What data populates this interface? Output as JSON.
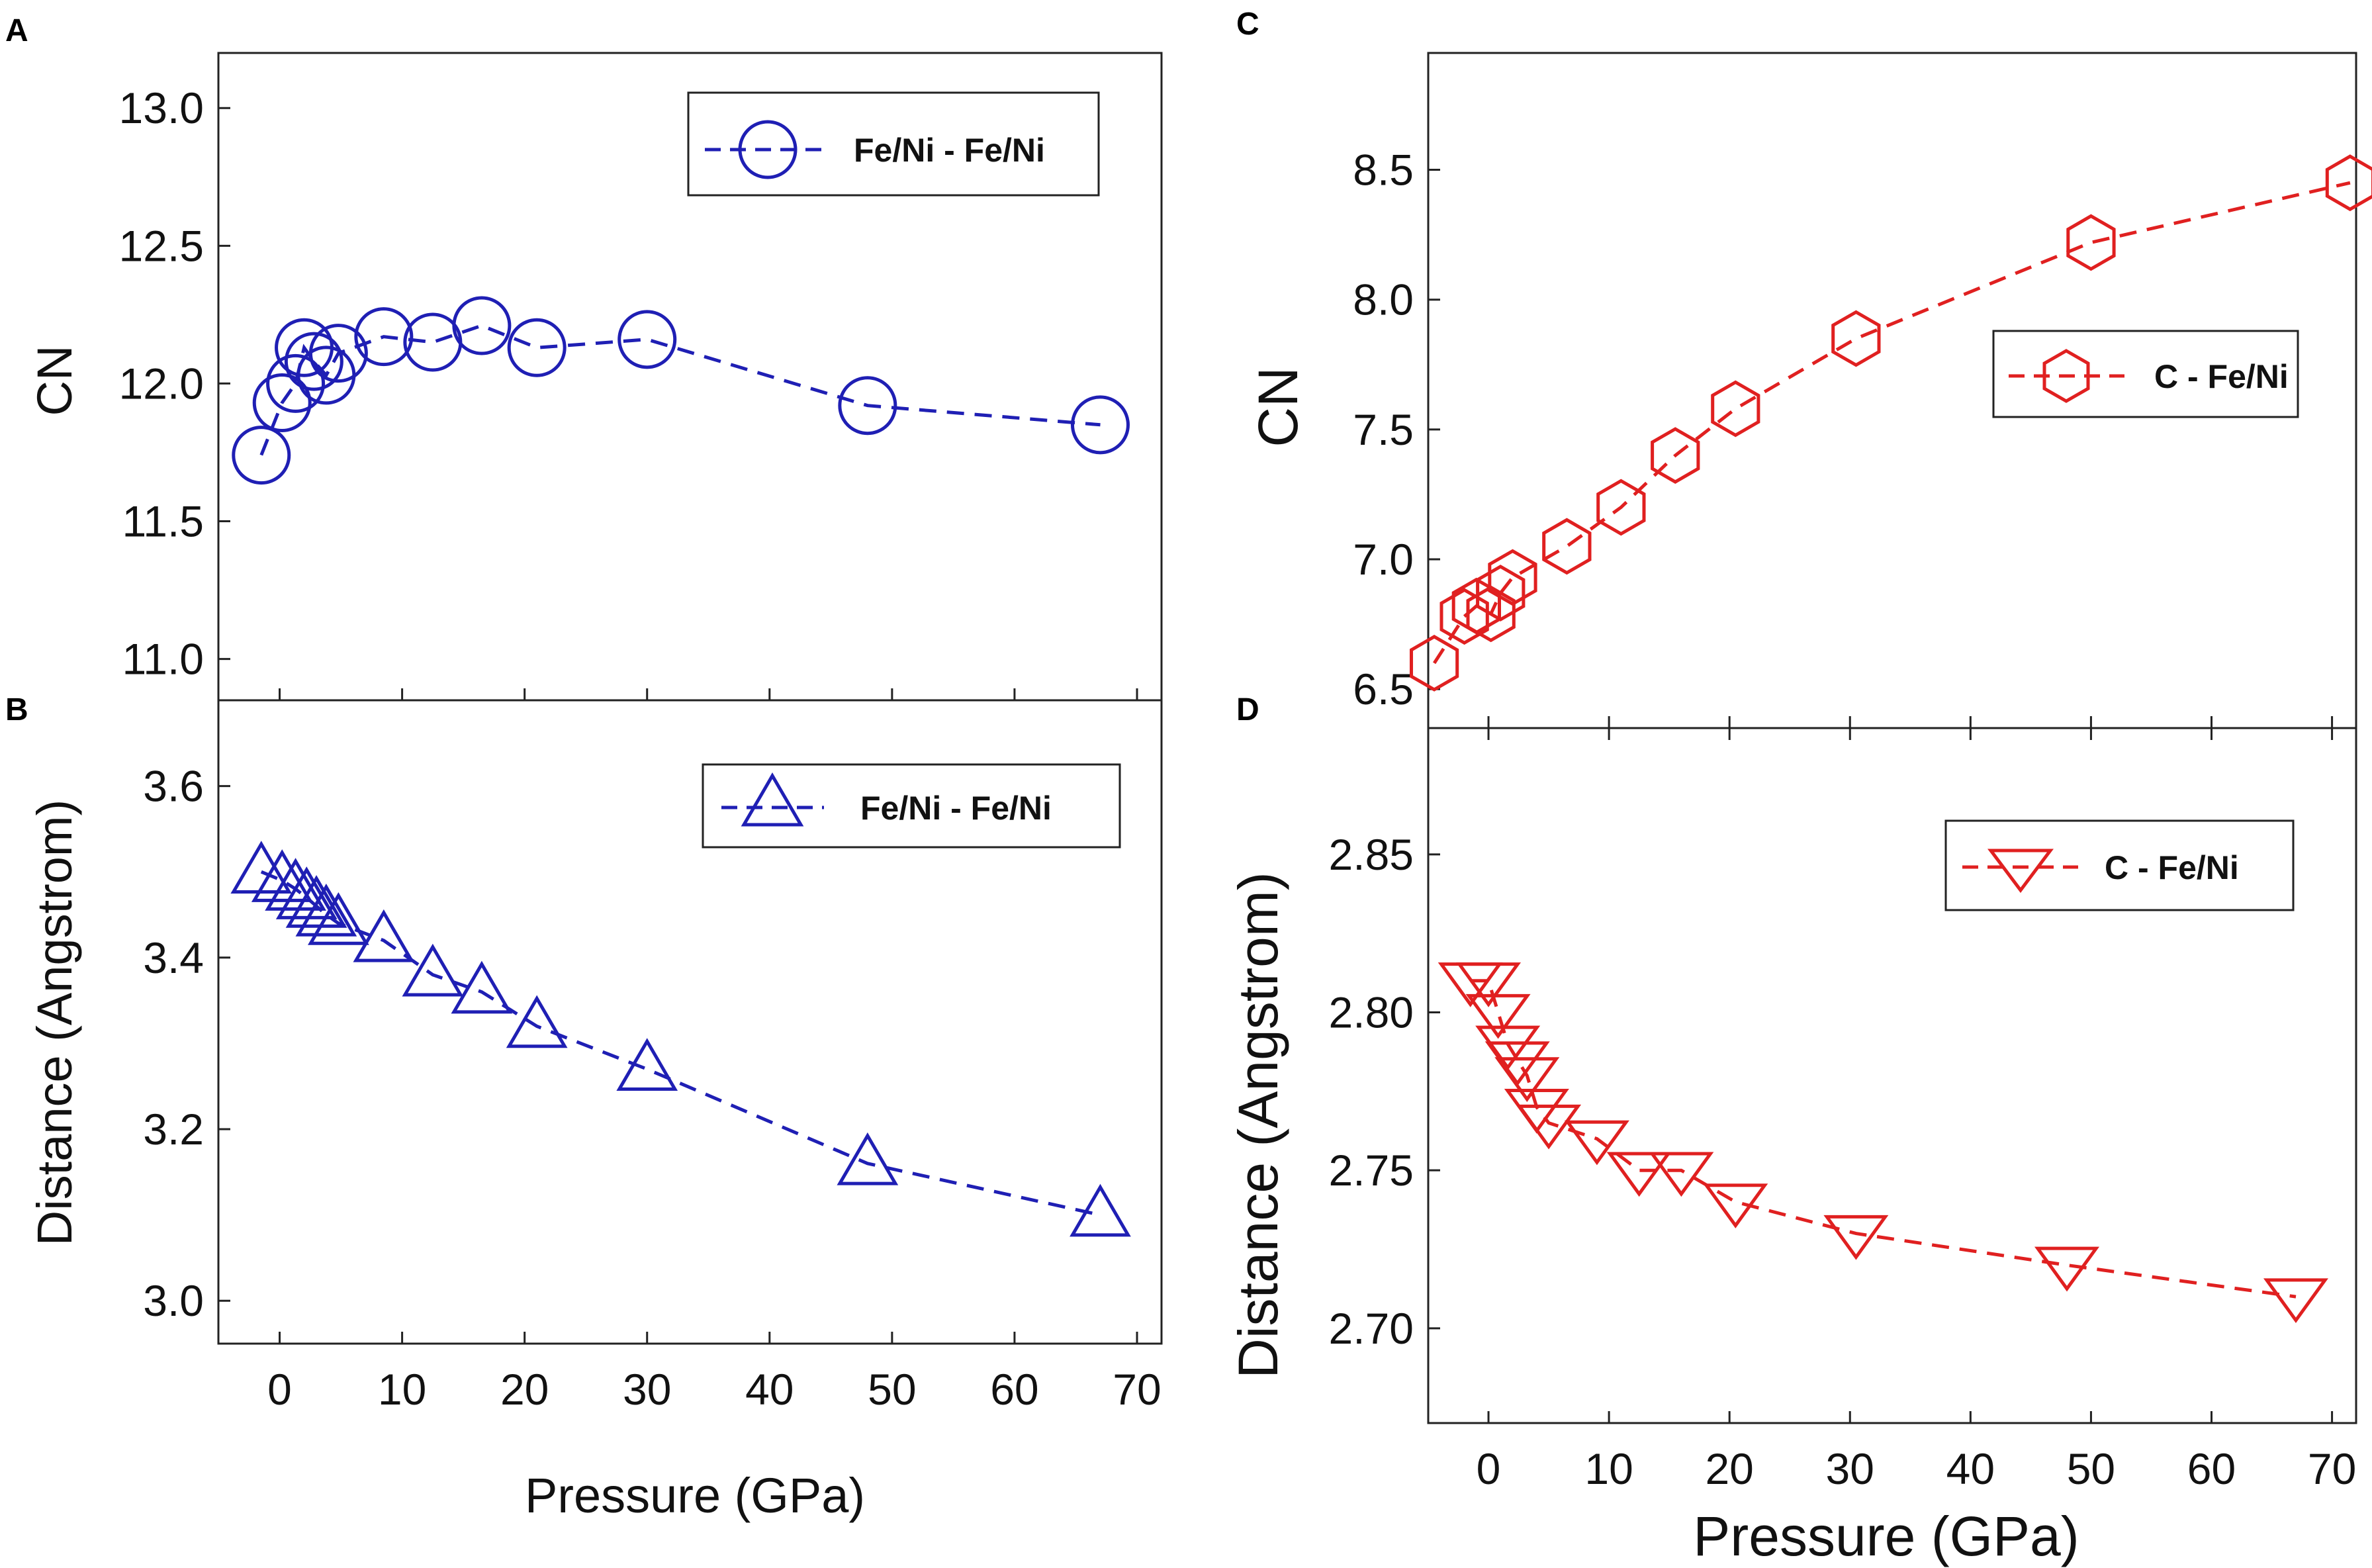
{
  "chart_data": [
    {
      "panel": "A",
      "type": "line",
      "xlabel": "",
      "ylabel": "CN",
      "xlim": [
        -5,
        72
      ],
      "ylim": [
        10.85,
        13.2
      ],
      "yticks": [
        "11.0",
        "11.5",
        "12.0",
        "12.5",
        "13.0"
      ],
      "xticks": [],
      "series": [
        {
          "name": "Fe/Ni - Fe/Ni",
          "color": "#1f1fb4",
          "marker": "circle",
          "x": [
            -1.5,
            0.2,
            1.3,
            2.0,
            2.8,
            3.8,
            4.8,
            8.5,
            12.5,
            16.5,
            21.0,
            30.0,
            48.0,
            67.0
          ],
          "y": [
            11.74,
            11.93,
            12.0,
            12.13,
            12.08,
            12.03,
            12.11,
            12.17,
            12.15,
            12.21,
            12.13,
            12.16,
            11.92,
            11.85
          ]
        }
      ]
    },
    {
      "panel": "B",
      "type": "line",
      "xlabel": "Pressure (GPa)",
      "ylabel": "Distance (Angstrom)",
      "xlim": [
        -5,
        72
      ],
      "ylim": [
        2.95,
        3.7
      ],
      "yticks": [
        "3.0",
        "3.2",
        "3.4",
        "3.6"
      ],
      "xticks": [
        "0",
        "10",
        "20",
        "30",
        "40",
        "50",
        "60",
        "70"
      ],
      "series": [
        {
          "name": "Fe/Ni - Fe/Ni",
          "color": "#1f1fb4",
          "marker": "triangle-up",
          "x": [
            -1.5,
            0.2,
            1.3,
            2.2,
            3.0,
            3.8,
            4.8,
            8.5,
            12.5,
            16.5,
            21.0,
            30.0,
            48.0,
            67.0
          ],
          "y": [
            3.5,
            3.49,
            3.48,
            3.47,
            3.46,
            3.45,
            3.44,
            3.42,
            3.38,
            3.36,
            3.32,
            3.27,
            3.16,
            3.1
          ]
        }
      ]
    },
    {
      "panel": "C",
      "type": "line",
      "xlabel": "",
      "ylabel": "CN",
      "xlim": [
        -5,
        72
      ],
      "ylim": [
        6.35,
        8.95
      ],
      "yticks": [
        "6.5",
        "7.0",
        "7.5",
        "8.0",
        "8.5"
      ],
      "xticks": [],
      "series": [
        {
          "name": "C - Fe/Ni",
          "color": "#e02020",
          "marker": "hexagon",
          "x": [
            -4.5,
            -2.0,
            -1.0,
            0.2,
            1.0,
            2.0,
            6.5,
            11.0,
            15.5,
            20.5,
            30.5,
            50.0,
            71.5
          ],
          "y": [
            6.6,
            6.78,
            6.82,
            6.79,
            6.87,
            6.93,
            7.05,
            7.2,
            7.4,
            7.58,
            7.85,
            8.22,
            8.45
          ]
        }
      ]
    },
    {
      "panel": "D",
      "type": "line",
      "xlabel": "Pressure (GPa)",
      "ylabel": "Distance (Angstrom)",
      "xlim": [
        -5,
        72
      ],
      "ylim": [
        2.67,
        2.89
      ],
      "yticks": [
        "2.70",
        "2.75",
        "2.80",
        "2.85"
      ],
      "xticks": [
        "0",
        "10",
        "20",
        "30",
        "40",
        "50",
        "60",
        "70"
      ],
      "series": [
        {
          "name": "C - Fe/Ni",
          "color": "#e02020",
          "marker": "triangle-down",
          "x": [
            -1.5,
            0.0,
            0.8,
            1.6,
            2.4,
            3.2,
            4.0,
            5.0,
            9.0,
            12.5,
            16.0,
            20.5,
            30.5,
            48.0,
            67.0
          ],
          "y": [
            2.81,
            2.81,
            2.8,
            2.79,
            2.785,
            2.78,
            2.77,
            2.765,
            2.76,
            2.75,
            2.75,
            2.74,
            2.73,
            2.72,
            2.71
          ]
        }
      ]
    }
  ]
}
